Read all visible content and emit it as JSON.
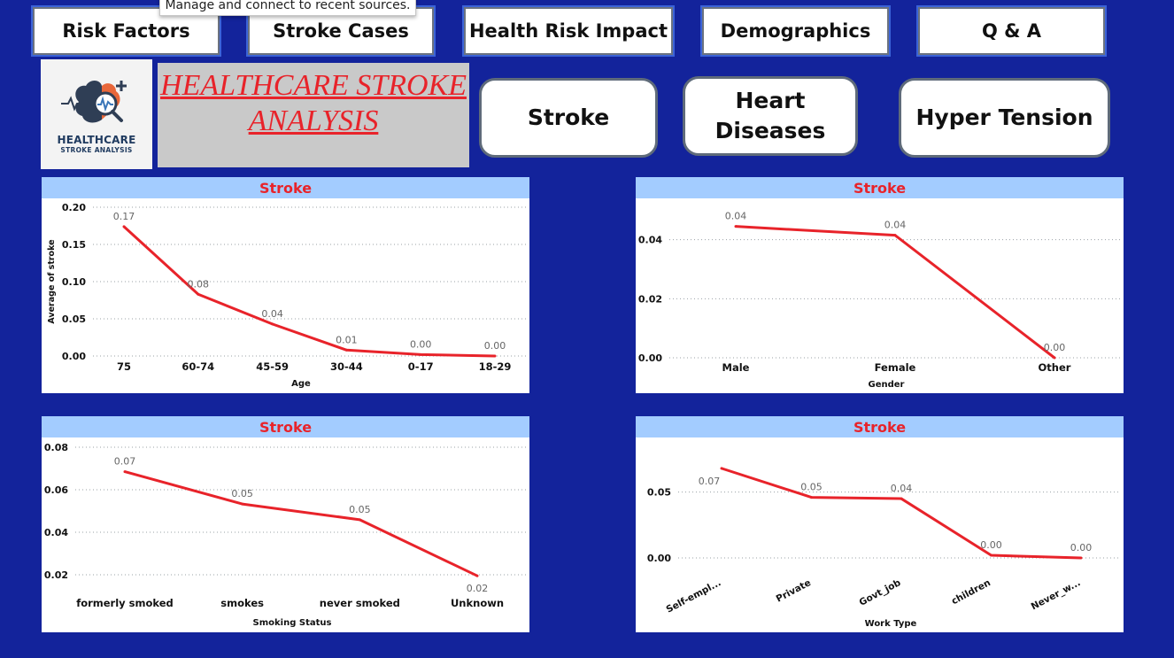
{
  "tooltip": "Manage and connect to recent sources.",
  "nav": [
    "Risk Factors",
    "Stroke Cases",
    "Health Risk Impact",
    "Demographics",
    "Q & A"
  ],
  "logo": {
    "line1": "HEALTHCARE",
    "line2": "STROKE ANALYSIS"
  },
  "title": {
    "line1": "HEALTHCARE STROKE",
    "line2": "ANALYSIS"
  },
  "pills": {
    "stroke": "Stroke",
    "heart_line1": "Heart",
    "heart_line2": "Diseases",
    "hyper": "Hyper Tension"
  },
  "colors": {
    "background": "#13239b",
    "line": "#e8232a",
    "header": "#a3ccff"
  },
  "chart_data": [
    {
      "type": "line",
      "title": "Stroke",
      "xlabel": "Age",
      "ylabel": "Average of stroke",
      "categories": [
        "75",
        "60-74",
        "45-59",
        "30-44",
        "0-17",
        "18-29"
      ],
      "values": [
        0.174,
        0.083,
        0.043,
        0.008,
        0.002,
        0.0
      ],
      "labels": [
        "0.17",
        "0.08",
        "0.04",
        "0.01",
        "0.00",
        "0.00"
      ],
      "ylim": [
        0,
        0.2
      ],
      "yticks": [
        "0.00",
        "0.05",
        "0.10",
        "0.15",
        "0.20"
      ],
      "grid": true
    },
    {
      "type": "line",
      "title": "Stroke",
      "xlabel": "Gender",
      "ylabel": "",
      "categories": [
        "Male",
        "Female",
        "Other"
      ],
      "values": [
        0.0445,
        0.0415,
        0.0
      ],
      "labels": [
        "0.04",
        "0.04",
        "0.00"
      ],
      "ylim": [
        0,
        0.048
      ],
      "yticks": [
        "0.00",
        "0.02",
        "0.04"
      ],
      "grid": true
    },
    {
      "type": "line",
      "title": "Stroke",
      "xlabel": "Smoking Status",
      "ylabel": "",
      "categories": [
        "formerly smoked",
        "smokes",
        "never smoked",
        "Unknown"
      ],
      "values": [
        0.0685,
        0.0533,
        0.0459,
        0.0195
      ],
      "labels": [
        "0.07",
        "0.05",
        "0.05",
        "0.02"
      ],
      "ylim": [
        0.02,
        0.08
      ],
      "yticks": [
        "0.02",
        "0.04",
        "0.06",
        "0.08"
      ],
      "grid": true
    },
    {
      "type": "line",
      "title": "Stroke",
      "xlabel": "Work Type",
      "ylabel": "",
      "categories": [
        "Self-empl...",
        "Private",
        "Govt_job",
        "children",
        "Never_w..."
      ],
      "values": [
        0.068,
        0.046,
        0.045,
        0.002,
        0.0
      ],
      "labels": [
        "0.07",
        "0.05",
        "0.04",
        "0.00",
        "0.00"
      ],
      "ylim": [
        0,
        0.078
      ],
      "yticks": [
        "0.00",
        "0.05"
      ],
      "grid": true
    }
  ]
}
